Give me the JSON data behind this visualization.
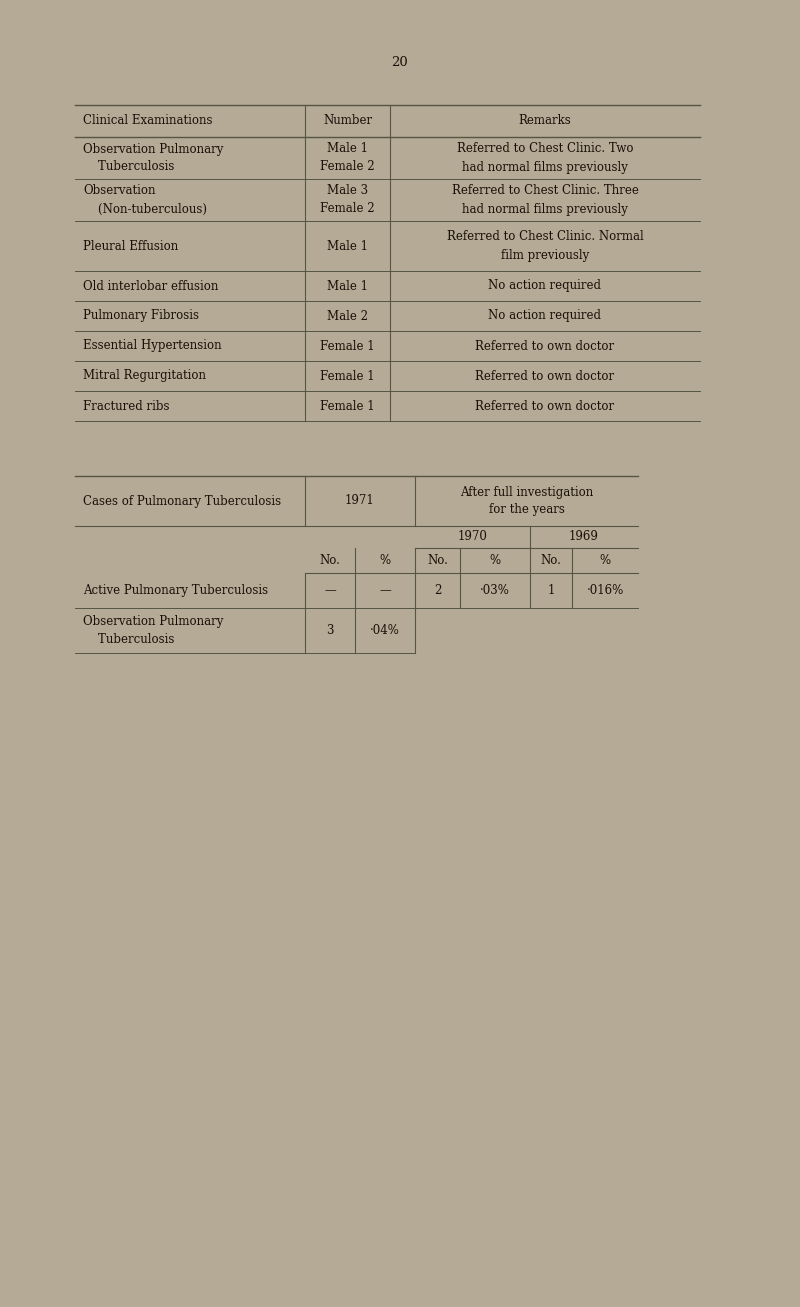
{
  "bg_color": "#b5aa96",
  "page_number": "20",
  "table1": {
    "headers": [
      "Clinical Examinations",
      "Number",
      "Remarks"
    ],
    "rows": [
      {
        "col1": "Observation Pulmonary\n    Tuberculosis",
        "col2": "Male 1\nFemale 2",
        "col3": "Referred to Chest Clinic. Two\nhad normal films previously"
      },
      {
        "col1": "Observation\n    (Non-tuberculous)",
        "col2": "Male 3\nFemale 2",
        "col3": "Referred to Chest Clinic. Three\nhad normal films previously"
      },
      {
        "col1": "Pleural Effusion",
        "col2": "Male 1",
        "col3": "Referred to Chest Clinic. Normal\nfilm previously"
      },
      {
        "col1": "Old interlobar effusion",
        "col2": "Male 1",
        "col3": "No action required"
      },
      {
        "col1": "Pulmonary Fibrosis",
        "col2": "Male 2",
        "col3": "No action required"
      },
      {
        "col1": "Essential Hypertension",
        "col2": "Female 1",
        "col3": "Referred to own doctor"
      },
      {
        "col1": "Mitral Regurgitation",
        "col2": "Female 1",
        "col3": "Referred to own doctor"
      },
      {
        "col1": "Fractured ribs",
        "col2": "Female 1",
        "col3": "Referred to own doctor"
      }
    ]
  },
  "table2": {
    "main_col1": "Cases of Pulmonary Tuberculosis",
    "year1971_label": "1971",
    "after_label": "After full investigation\nfor the years",
    "year1970": "1970",
    "year1969": "1969",
    "col_headers": [
      "No.",
      "%",
      "No.",
      "%",
      "No.",
      "%"
    ],
    "rows": [
      {
        "col1": "Active Pulmonary Tuberculosis",
        "no1971": "—",
        "pct1971": "—",
        "no1970": "2",
        "pct1970": "·03%",
        "no1969": "1",
        "pct1969": "·016%"
      },
      {
        "col1": "Observation Pulmonary\n    Tuberculosis",
        "no1971": "3",
        "pct1971": "·04%",
        "no1970": "",
        "pct1970": "",
        "no1969": "",
        "pct1969": ""
      }
    ]
  },
  "font_size": 8.5,
  "text_color": "#1a1008",
  "line_color": "#555544"
}
